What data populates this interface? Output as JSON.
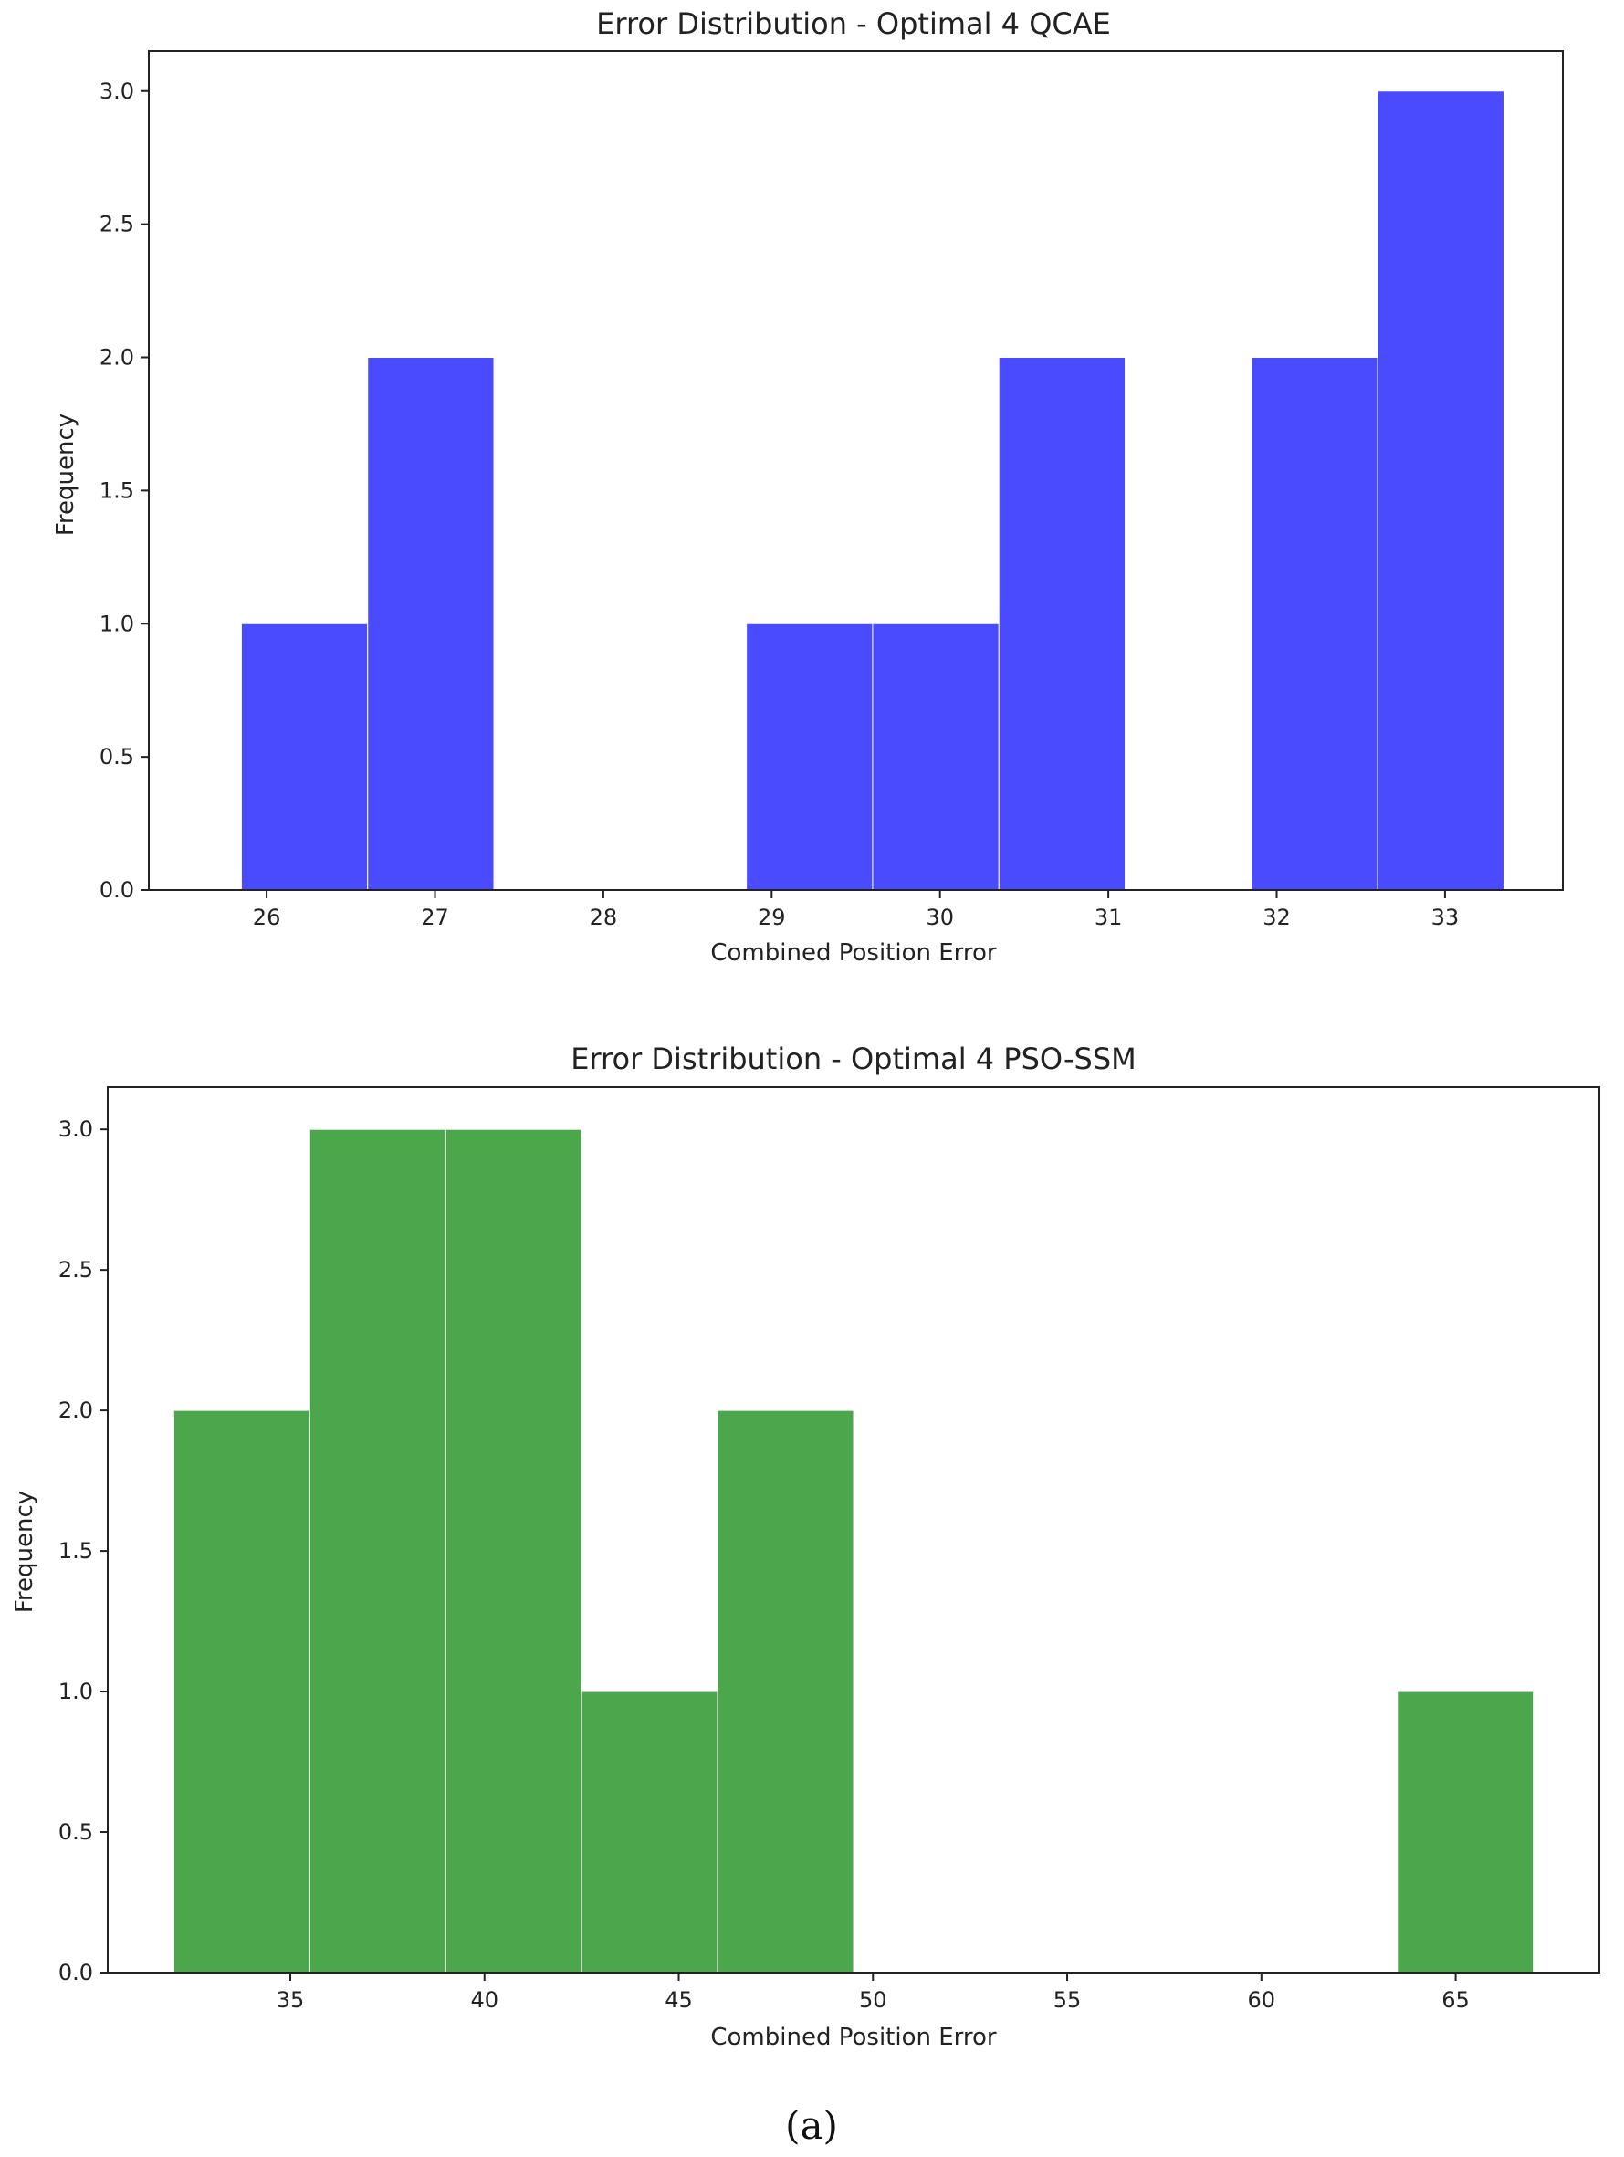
{
  "chart_data": [
    {
      "type": "bar",
      "title": "Error Distribution - Optimal 4 QCAE",
      "xlabel": "Combined Position Error",
      "ylabel": "Frequency",
      "xlim": [
        25.3,
        33.7
      ],
      "ylim": [
        0,
        3.15
      ],
      "xticks": [
        26,
        27,
        28,
        29,
        30,
        31,
        32,
        33
      ],
      "yticks": [
        0.0,
        0.5,
        1.0,
        1.5,
        2.0,
        2.5,
        3.0
      ],
      "grid": false,
      "color": "#4a4aff",
      "bins": [
        {
          "start": 25.85,
          "end": 26.6,
          "value": 1
        },
        {
          "start": 26.6,
          "end": 27.35,
          "value": 2
        },
        {
          "start": 27.35,
          "end": 28.1,
          "value": 0
        },
        {
          "start": 28.1,
          "end": 28.85,
          "value": 0
        },
        {
          "start": 28.85,
          "end": 29.6,
          "value": 1
        },
        {
          "start": 29.6,
          "end": 30.35,
          "value": 1
        },
        {
          "start": 30.35,
          "end": 31.1,
          "value": 2
        },
        {
          "start": 31.1,
          "end": 31.85,
          "value": 0
        },
        {
          "start": 31.85,
          "end": 32.6,
          "value": 2
        },
        {
          "start": 32.6,
          "end": 33.35,
          "value": 3
        }
      ]
    },
    {
      "type": "bar",
      "title": "Error Distribution - Optimal 4 PSO-SSM",
      "xlabel": "Combined Position Error",
      "ylabel": "Frequency",
      "xlim": [
        30.3,
        68.7
      ],
      "ylim": [
        0,
        3.15
      ],
      "xticks": [
        35,
        40,
        45,
        50,
        55,
        60,
        65
      ],
      "yticks": [
        0.0,
        0.5,
        1.0,
        1.5,
        2.0,
        2.5,
        3.0
      ],
      "grid": false,
      "color": "#4ca64c",
      "bins": [
        {
          "start": 32.0,
          "end": 35.5,
          "value": 2
        },
        {
          "start": 35.5,
          "end": 39.0,
          "value": 3
        },
        {
          "start": 39.0,
          "end": 42.5,
          "value": 3
        },
        {
          "start": 42.5,
          "end": 46.0,
          "value": 1
        },
        {
          "start": 46.0,
          "end": 49.5,
          "value": 2
        },
        {
          "start": 49.5,
          "end": 53.0,
          "value": 0
        },
        {
          "start": 53.0,
          "end": 56.5,
          "value": 0
        },
        {
          "start": 56.5,
          "end": 60.0,
          "value": 0
        },
        {
          "start": 60.0,
          "end": 63.5,
          "value": 0
        },
        {
          "start": 63.5,
          "end": 67.0,
          "value": 1
        }
      ]
    }
  ],
  "caption": "(a)"
}
